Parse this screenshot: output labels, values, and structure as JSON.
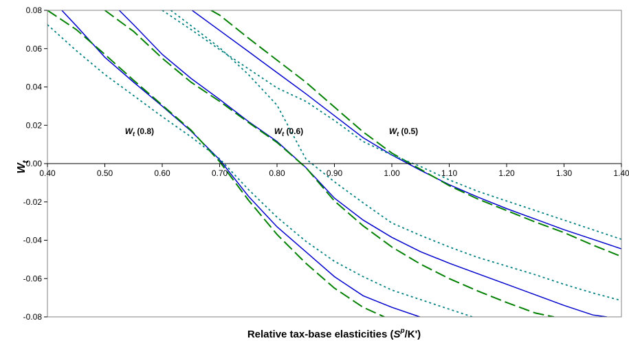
{
  "chart_data": {
    "type": "line",
    "title": "",
    "xlabel": {
      "text": "Relative tax-base elasticities (",
      "sym": "S",
      "sup": "p",
      "tail": "/K')"
    },
    "ylabel": {
      "main": "W",
      "sub": "t"
    },
    "xlim": [
      0.4,
      1.4
    ],
    "ylim": [
      -0.08,
      0.08
    ],
    "x_ticks": [
      "0.40",
      "0.50",
      "0.60",
      "0.70",
      "0.80",
      "0.90",
      "1.00",
      "1.10",
      "1.20",
      "1.30",
      "1.40"
    ],
    "y_ticks": [
      "0.08",
      "0.06",
      "0.04",
      "0.02",
      "0.00",
      "-0.02",
      "-0.04",
      "-0.06",
      "-0.08"
    ],
    "grid": false,
    "legend": "none",
    "annotations": [
      {
        "main": "W",
        "sub": "t",
        "tail": " (0.8)",
        "x": 0.535,
        "y": 0.0155
      },
      {
        "main": "W",
        "sub": "t",
        "tail": " (0.6)",
        "x": 0.795,
        "y": 0.0155
      },
      {
        "main": "W",
        "sub": "t",
        "tail": " (0.5)",
        "x": 0.995,
        "y": 0.0155
      }
    ],
    "series": [
      {
        "style": "solid",
        "color": "#0000CC",
        "x": [
          0.425,
          0.45,
          0.5,
          0.55,
          0.6,
          0.65,
          0.7,
          0.75,
          0.8,
          0.85,
          0.9,
          0.95,
          1.0,
          1.0487
        ],
        "y": [
          0.08,
          0.072,
          0.0555,
          0.0425,
          0.03,
          0.017,
          0.002,
          -0.017,
          -0.033,
          -0.046,
          -0.059,
          -0.069,
          -0.075,
          -0.08
        ]
      },
      {
        "style": "dashed",
        "color": "#008000",
        "x": [
          0.4,
          0.45,
          0.5,
          0.55,
          0.6,
          0.65,
          0.7,
          0.75,
          0.8,
          0.85,
          0.9,
          0.95,
          0.987
        ],
        "y": [
          0.08,
          0.07,
          0.057,
          0.0435,
          0.0305,
          0.0175,
          0.001,
          -0.019,
          -0.037,
          -0.052,
          -0.065,
          -0.075,
          -0.08
        ]
      },
      {
        "style": "dotted",
        "color": "#008080",
        "x": [
          0.4,
          0.45,
          0.5,
          0.55,
          0.6,
          0.65,
          0.7,
          0.75,
          0.8,
          0.85,
          0.9,
          0.95,
          1.0,
          1.05,
          1.1,
          1.1405
        ],
        "y": [
          0.0725,
          0.059,
          0.0465,
          0.0355,
          0.0245,
          0.014,
          0.0025,
          -0.0135,
          -0.028,
          -0.0405,
          -0.051,
          -0.059,
          -0.066,
          -0.071,
          -0.076,
          -0.08
        ]
      },
      {
        "style": "solid",
        "color": "#0000CC",
        "x": [
          0.525,
          0.55,
          0.6,
          0.65,
          0.7,
          0.75,
          0.8,
          0.85,
          0.9,
          0.95,
          1.0,
          1.05,
          1.1,
          1.15,
          1.2,
          1.25,
          1.3,
          1.35,
          1.375
        ],
        "y": [
          0.08,
          0.0725,
          0.057,
          0.0445,
          0.0335,
          0.022,
          0.0115,
          -0.002,
          -0.018,
          -0.0295,
          -0.0385,
          -0.046,
          -0.052,
          -0.0575,
          -0.063,
          -0.0685,
          -0.074,
          -0.079,
          -0.08
        ]
      },
      {
        "style": "dashed",
        "color": "#008000",
        "x": [
          0.5,
          0.55,
          0.6,
          0.65,
          0.7,
          0.75,
          0.8,
          0.85,
          0.9,
          0.95,
          1.0,
          1.05,
          1.1,
          1.15,
          1.2,
          1.25,
          1.2825
        ],
        "y": [
          0.08,
          0.069,
          0.055,
          0.0425,
          0.0325,
          0.0215,
          0.011,
          -0.002,
          -0.0195,
          -0.0325,
          -0.0435,
          -0.0525,
          -0.06,
          -0.0665,
          -0.0725,
          -0.078,
          -0.08
        ]
      },
      {
        "style": "dotted",
        "color": "#008080",
        "x": [
          0.615,
          0.65,
          0.7,
          0.75,
          0.8,
          0.85,
          0.9,
          0.95,
          1.0,
          1.05,
          1.1,
          1.15,
          1.2,
          1.25,
          1.3,
          1.35,
          1.4
        ],
        "y": [
          0.08,
          0.072,
          0.0605,
          0.0465,
          0.0305,
          0.0025,
          -0.0095,
          -0.0205,
          -0.031,
          -0.0375,
          -0.0435,
          -0.049,
          -0.0535,
          -0.058,
          -0.063,
          -0.0675,
          -0.0715
        ]
      },
      {
        "style": "solid",
        "color": "#0000CC",
        "x": [
          0.652,
          0.7,
          0.75,
          0.8,
          0.85,
          0.9,
          0.95,
          1.0,
          1.05,
          1.1,
          1.15,
          1.2,
          1.25,
          1.3,
          1.35,
          1.4
        ],
        "y": [
          0.08,
          0.0695,
          0.0585,
          0.0475,
          0.0365,
          0.025,
          0.0135,
          0.0045,
          -0.0035,
          -0.011,
          -0.0175,
          -0.0235,
          -0.029,
          -0.0345,
          -0.0395,
          -0.0445
        ]
      },
      {
        "style": "dashed",
        "color": "#008000",
        "x": [
          0.685,
          0.7,
          0.75,
          0.8,
          0.85,
          0.9,
          0.95,
          1.0,
          1.05,
          1.1,
          1.15,
          1.2,
          1.25,
          1.3,
          1.35,
          1.4
        ],
        "y": [
          0.08,
          0.0775,
          0.0655,
          0.054,
          0.0425,
          0.0295,
          0.0165,
          0.0055,
          -0.003,
          -0.0115,
          -0.0185,
          -0.0245,
          -0.0305,
          -0.036,
          -0.0425,
          -0.0485
        ]
      },
      {
        "style": "dotted",
        "color": "#008080",
        "x": [
          0.6,
          0.65,
          0.7,
          0.75,
          0.8,
          0.85,
          0.9,
          0.95,
          1.0,
          1.05,
          1.1,
          1.15,
          1.2,
          1.25,
          1.3,
          1.35,
          1.4
        ],
        "y": [
          0.08,
          0.07,
          0.0595,
          0.0495,
          0.0395,
          0.0325,
          0.0225,
          0.0115,
          0.0045,
          -0.0015,
          -0.0085,
          -0.0145,
          -0.0195,
          -0.0245,
          -0.0295,
          -0.0345,
          -0.0395
        ]
      }
    ]
  }
}
